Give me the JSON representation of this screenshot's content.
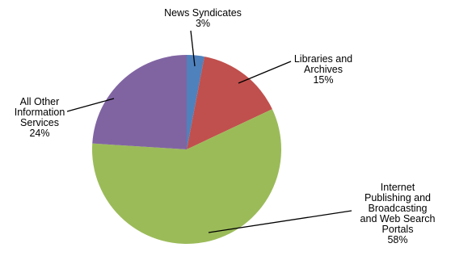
{
  "chart_data": {
    "type": "pie",
    "start_angle_deg": 0,
    "direction": "clockwise",
    "slices": [
      {
        "label_lines": [
          "News Syndicates"
        ],
        "value": 3,
        "value_text": "3%",
        "color": "#4f81bd"
      },
      {
        "label_lines": [
          "Libraries and",
          "Archives"
        ],
        "value": 15,
        "value_text": "15%",
        "color": "#c0504d"
      },
      {
        "label_lines": [
          "Internet",
          "Publishing and",
          "Broadcasting",
          "and Web Search",
          "Portals"
        ],
        "value": 58,
        "value_text": "58%",
        "color": "#9bbb59"
      },
      {
        "label_lines": [
          "All Other",
          "Information",
          "Services"
        ],
        "value": 24,
        "value_text": "24%",
        "color": "#8064a2"
      }
    ]
  }
}
